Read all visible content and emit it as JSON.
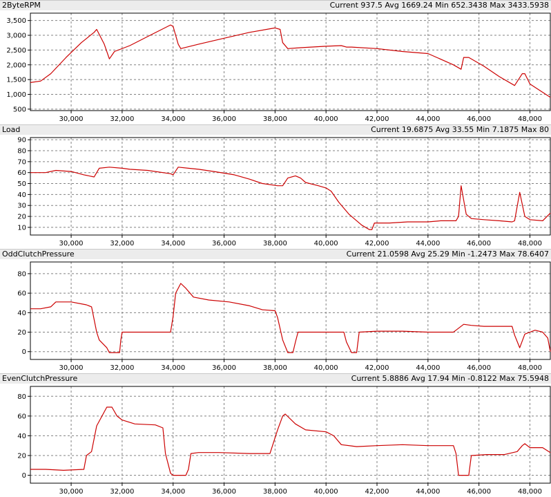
{
  "colors": {
    "line": "#cc0000",
    "grid": "#808080",
    "axis": "#000000",
    "titlebar": "#ececec"
  },
  "chart_data": [
    {
      "type": "line",
      "title": "2ByteRPM",
      "stats": "Current 937.5 Avg 1669.24 Min 652.3438 Max 3433.5938",
      "xlim": [
        28400,
        48800
      ],
      "ylim": [
        450,
        3750
      ],
      "x_ticks": [
        30000,
        32000,
        34000,
        36000,
        38000,
        40000,
        42000,
        44000,
        46000,
        48000
      ],
      "x_tick_labels": [
        "30,000",
        "32,000",
        "34,000",
        "36,000",
        "38,000",
        "40,000",
        "42,000",
        "44,000",
        "46,000",
        "48,000"
      ],
      "y_ticks": [
        500,
        1000,
        1500,
        2000,
        2500,
        3000,
        3500
      ],
      "y_tick_labels": [
        "500",
        "1,000",
        "1,500",
        "2,000",
        "2,500",
        "3,000",
        "3,500"
      ],
      "grid": true,
      "series": [
        {
          "x": [
            28400,
            28800,
            29200,
            29800,
            30400,
            30900,
            31000,
            31300,
            31500,
            31700,
            32300,
            33100,
            33900,
            34000,
            34200,
            34300,
            35000,
            36000,
            37000,
            38000,
            38200,
            38300,
            38500,
            39000,
            40000,
            40600,
            40800,
            41000,
            42000,
            43000,
            44000,
            45000,
            45300,
            45400,
            45600,
            46200,
            46800,
            47400,
            47700,
            47800,
            48000,
            48800
          ],
          "y": [
            1400,
            1450,
            1700,
            2250,
            2750,
            3100,
            3200,
            2700,
            2200,
            2450,
            2650,
            3000,
            3350,
            3300,
            2700,
            2550,
            2700,
            2900,
            3100,
            3250,
            3200,
            2750,
            2550,
            2580,
            2630,
            2650,
            2600,
            2600,
            2550,
            2450,
            2380,
            2000,
            1850,
            2250,
            2250,
            1950,
            1600,
            1300,
            1700,
            1700,
            1350,
            900
          ]
        }
      ]
    },
    {
      "type": "line",
      "title": "Load",
      "stats": "Current 19.6875 Avg 33.55 Min 7.1875 Max 80",
      "xlim": [
        28400,
        48800
      ],
      "ylim": [
        3,
        92
      ],
      "x_ticks": [
        30000,
        32000,
        34000,
        36000,
        38000,
        40000,
        42000,
        44000,
        46000,
        48000
      ],
      "x_tick_labels": [
        "30,000",
        "32,000",
        "34,000",
        "36,000",
        "38,000",
        "40,000",
        "42,000",
        "44,000",
        "46,000",
        "48,000"
      ],
      "y_ticks": [
        10,
        20,
        30,
        40,
        50,
        60,
        70,
        80,
        90
      ],
      "y_tick_labels": [
        "10",
        "20",
        "30",
        "40",
        "50",
        "60",
        "70",
        "80",
        "90"
      ],
      "grid": true,
      "series": [
        {
          "x": [
            28400,
            29000,
            29400,
            30000,
            30500,
            30900,
            31100,
            31500,
            32000,
            32300,
            33000,
            33900,
            34000,
            34200,
            34600,
            35000,
            35600,
            36400,
            37000,
            37500,
            38100,
            38300,
            38500,
            38800,
            39000,
            39200,
            39700,
            40000,
            40200,
            40500,
            40900,
            41400,
            41700,
            41800,
            41900,
            42500,
            43200,
            44000,
            44500,
            45100,
            45200,
            45300,
            45500,
            45700,
            46200,
            46800,
            47300,
            47400,
            47600,
            47800,
            48000,
            48500,
            48800
          ],
          "y": [
            60,
            60,
            62,
            61,
            58,
            56,
            64,
            65,
            64,
            63,
            62,
            59,
            58,
            65,
            64,
            63,
            61,
            58,
            54,
            50,
            48,
            48,
            55,
            57,
            55,
            51,
            48,
            46,
            43,
            33,
            22,
            12,
            8,
            8,
            14,
            14,
            15,
            15,
            16,
            16,
            20,
            48,
            22,
            18,
            17,
            16,
            15,
            16,
            42,
            20,
            17,
            16,
            23
          ]
        }
      ]
    },
    {
      "type": "line",
      "title": "OddClutchPressure",
      "stats": "Current 21.0598 Avg 25.29 Min -1.2473 Max 78.6407",
      "xlim": [
        28400,
        48800
      ],
      "ylim": [
        -8,
        92
      ],
      "x_ticks": [
        30000,
        32000,
        34000,
        36000,
        38000,
        40000,
        42000,
        44000,
        46000,
        48000
      ],
      "x_tick_labels": [
        "30,000",
        "32,000",
        "34,000",
        "36,000",
        "38,000",
        "40,000",
        "42,000",
        "44,000",
        "46,000",
        "48,000"
      ],
      "y_ticks": [
        0,
        20,
        40,
        60,
        80
      ],
      "y_tick_labels": [
        "0",
        "20",
        "40",
        "60",
        "80"
      ],
      "grid": true,
      "series": [
        {
          "x": [
            28400,
            28800,
            29200,
            29400,
            30000,
            30600,
            30800,
            31000,
            31100,
            31400,
            31500,
            31900,
            31950,
            32000,
            32500,
            33800,
            33900,
            34000,
            34100,
            34300,
            34500,
            34800,
            35400,
            36200,
            37000,
            37500,
            38000,
            38100,
            38300,
            38500,
            38700,
            38800,
            38900,
            39800,
            40700,
            40800,
            41000,
            41200,
            41300,
            42000,
            43000,
            44000,
            45000,
            45100,
            45400,
            45700,
            46200,
            46900,
            47300,
            47400,
            47600,
            47800,
            48000,
            48200,
            48500,
            48700,
            48800
          ],
          "y": [
            44,
            44,
            46,
            51,
            51,
            48,
            46,
            20,
            12,
            4,
            -1,
            -1,
            12,
            20,
            20,
            20,
            20,
            36,
            60,
            70,
            65,
            56,
            53,
            51,
            47,
            43,
            42,
            35,
            12,
            -1,
            -1,
            10,
            20,
            20,
            20,
            10,
            -1,
            -1,
            20,
            21,
            21,
            20,
            20,
            22,
            28,
            27,
            26,
            26,
            26,
            17,
            4,
            18,
            20,
            22,
            20,
            14,
            0
          ]
        }
      ]
    },
    {
      "type": "line",
      "title": "EvenClutchPressure",
      "stats": "Current 5.8886 Avg 17.94 Min -0.8122 Max 75.5948",
      "xlim": [
        28400,
        48800
      ],
      "ylim": [
        -8,
        90
      ],
      "x_ticks": [
        30000,
        32000,
        34000,
        36000,
        38000,
        40000,
        42000,
        44000,
        46000,
        48000
      ],
      "x_tick_labels": [
        "30,000",
        "32,000",
        "34,000",
        "36,000",
        "38,000",
        "40,000",
        "42,000",
        "44,000",
        "46,000",
        "48,000"
      ],
      "y_ticks": [
        0,
        20,
        40,
        60,
        80
      ],
      "y_tick_labels": [
        "0",
        "20",
        "40",
        "60",
        "80"
      ],
      "grid": true,
      "series": [
        {
          "x": [
            28400,
            29000,
            29700,
            30500,
            30600,
            30800,
            31000,
            31400,
            31600,
            31800,
            32000,
            32500,
            33300,
            33600,
            33700,
            33900,
            34000,
            34500,
            34600,
            34700,
            35000,
            35800,
            37000,
            37800,
            38100,
            38300,
            38400,
            38800,
            39200,
            40000,
            40300,
            40600,
            41200,
            42000,
            43000,
            44000,
            45000,
            45100,
            45200,
            45600,
            45700,
            46300,
            47000,
            47500,
            47700,
            47800,
            48000,
            48500,
            48800
          ],
          "y": [
            6,
            6,
            5,
            6,
            20,
            24,
            50,
            69,
            69,
            60,
            56,
            52,
            51,
            48,
            22,
            2,
            0,
            0,
            6,
            22,
            23,
            23,
            22,
            22,
            46,
            60,
            62,
            52,
            46,
            44,
            40,
            31,
            29,
            30,
            31,
            30,
            30,
            22,
            0,
            0,
            20,
            21,
            21,
            24,
            30,
            32,
            28,
            28,
            23
          ]
        }
      ]
    }
  ]
}
